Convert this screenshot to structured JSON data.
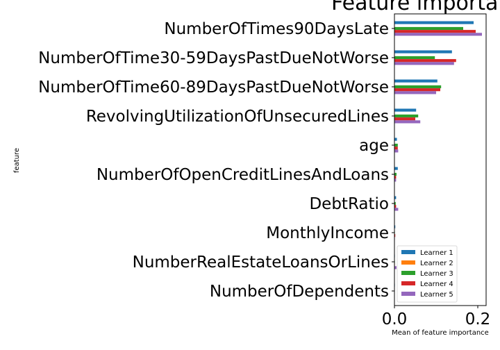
{
  "chart_data": {
    "type": "bar",
    "orientation": "horizontal",
    "title": "Feature importa",
    "xlabel": "Mean of feature importance",
    "ylabel": "feature",
    "xlim": [
      0,
      0.22
    ],
    "xticks": [
      0.0,
      0.2
    ],
    "xtick_labels": [
      "0.0",
      "0.2"
    ],
    "grid": false,
    "legend_position": "lower-right",
    "categories": [
      "NumberOfTimes90DaysLate",
      "NumberOfTime30-59DaysPastDueNotWorse",
      "NumberOfTime60-89DaysPastDueNotWorse",
      "RevolvingUtilizationOfUnsecuredLines",
      "age",
      "NumberOfOpenCreditLinesAndLoans",
      "DebtRatio",
      "MonthlyIncome",
      "NumberRealEstateLoansOrLines",
      "NumberOfDependents"
    ],
    "series": [
      {
        "name": "Learner 1",
        "color": "#1f77b4",
        "values": [
          0.19,
          0.138,
          0.103,
          0.052,
          0.006,
          0.008,
          0.004,
          0.002,
          0.001,
          0.001
        ]
      },
      {
        "name": "Learner 2",
        "color": "#ff7f0e",
        "values": [
          0.0,
          0.0,
          0.0,
          0.0,
          0.0,
          0.0,
          0.0,
          0.0,
          0.0,
          0.0
        ]
      },
      {
        "name": "Learner 3",
        "color": "#2ca02c",
        "values": [
          0.165,
          0.097,
          0.112,
          0.057,
          0.008,
          0.005,
          0.003,
          0.001,
          0.001,
          0.0
        ]
      },
      {
        "name": "Learner 4",
        "color": "#d62728",
        "values": [
          0.195,
          0.148,
          0.11,
          0.05,
          0.008,
          0.004,
          0.004,
          0.002,
          0.001,
          0.0
        ]
      },
      {
        "name": "Learner 5",
        "color": "#9467bd",
        "values": [
          0.21,
          0.143,
          0.1,
          0.062,
          0.009,
          0.004,
          0.009,
          0.001,
          0.005,
          0.0
        ]
      }
    ]
  }
}
